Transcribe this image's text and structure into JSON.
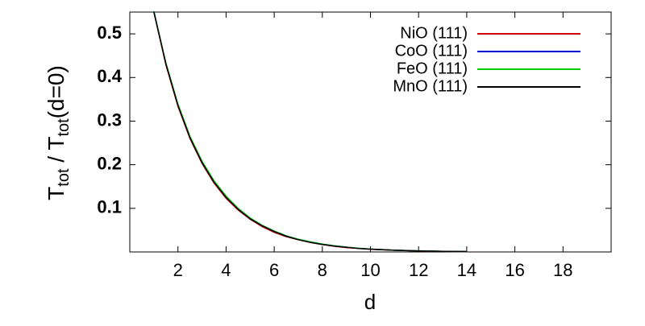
{
  "chart_data": {
    "type": "line",
    "xlabel": "d",
    "ylabel_parts": [
      "T",
      "tot",
      " / T",
      "tot",
      "(d=0)"
    ],
    "x": [
      1,
      1.5,
      2,
      2.5,
      3,
      3.5,
      4,
      4.5,
      5,
      5.5,
      6,
      6.5,
      7,
      7.5,
      8,
      8.5,
      9,
      9.5,
      10,
      11,
      12,
      13,
      14
    ],
    "series": [
      {
        "name": "NiO (111)",
        "color": "#cc0000",
        "values": [
          0.55,
          0.429,
          0.334,
          0.26,
          0.203,
          0.158,
          0.123,
          0.096,
          0.075,
          0.058,
          0.045,
          0.035,
          0.028,
          0.022,
          0.017,
          0.013,
          0.01,
          0.008,
          0.006,
          0.004,
          0.002,
          0.0015,
          0.001
        ]
      },
      {
        "name": "CoO (111)",
        "color": "#0000cc",
        "values": [
          0.552,
          0.432,
          0.337,
          0.263,
          0.206,
          0.161,
          0.126,
          0.099,
          0.077,
          0.06,
          0.047,
          0.037,
          0.029,
          0.023,
          0.018,
          0.014,
          0.011,
          0.008,
          0.0065,
          0.004,
          0.0025,
          0.0015,
          0.001
        ]
      },
      {
        "name": "FeO (111)",
        "color": "#00cc00",
        "values": [
          0.551,
          0.433,
          0.339,
          0.265,
          0.208,
          0.163,
          0.128,
          0.1,
          0.078,
          0.061,
          0.048,
          0.037,
          0.029,
          0.023,
          0.018,
          0.014,
          0.011,
          0.0085,
          0.0066,
          0.004,
          0.0025,
          0.0015,
          0.001
        ]
      },
      {
        "name": "MnO (111)",
        "color": "#000000",
        "values": [
          0.55,
          0.431,
          0.336,
          0.262,
          0.205,
          0.16,
          0.125,
          0.098,
          0.076,
          0.06,
          0.047,
          0.036,
          0.028,
          0.022,
          0.017,
          0.0135,
          0.0106,
          0.0082,
          0.0064,
          0.0039,
          0.0024,
          0.0015,
          0.0009
        ]
      }
    ],
    "xlim": [
      0,
      20
    ],
    "ylim": [
      0,
      0.55
    ],
    "xticks": [
      2,
      4,
      6,
      8,
      10,
      12,
      14,
      16,
      18
    ],
    "yticks": [
      0.1,
      0.2,
      0.3,
      0.4,
      0.5
    ],
    "legend": "top-right"
  }
}
